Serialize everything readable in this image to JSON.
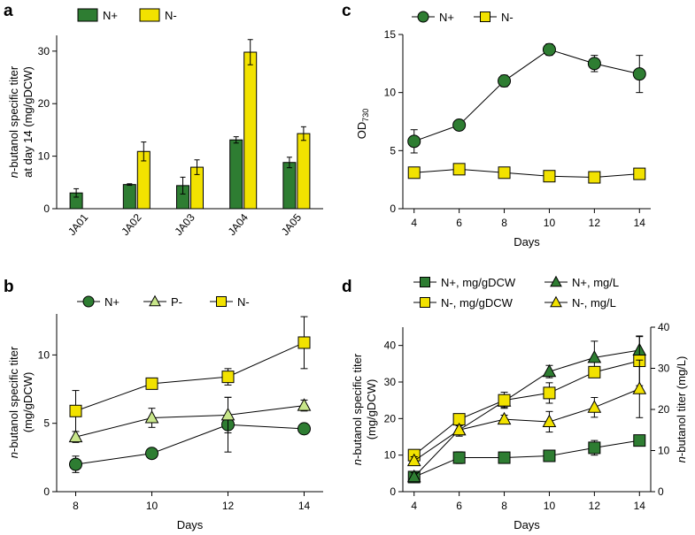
{
  "colors": {
    "n_plus": "#2e7d32",
    "n_minus": "#f2e200",
    "p_minus": "#c8e68a",
    "axis": "#000000"
  },
  "chart_data": [
    {
      "panel": "a",
      "type": "bar",
      "title": "",
      "xlabel": "",
      "ylabel_italic": "n",
      "ylabel_line1": "-butanol specific titer",
      "ylabel_line2": "at day 14 (mg/gDCW)",
      "categories": [
        "JA01",
        "JA02",
        "JA03",
        "JA04",
        "JA05"
      ],
      "ylim": [
        0,
        33
      ],
      "yticks": [
        "0",
        "10",
        "20",
        "30"
      ],
      "legend_position": "top",
      "series": [
        {
          "name": "N+",
          "color_key": "n_plus",
          "values": [
            3.0,
            4.6,
            4.4,
            13.1,
            8.8
          ],
          "errors": [
            0.8,
            0.15,
            1.6,
            0.6,
            1.0
          ]
        },
        {
          "name": "N-",
          "color_key": "n_minus",
          "values": [
            null,
            10.9,
            7.9,
            29.8,
            14.3
          ],
          "errors": [
            null,
            1.8,
            1.4,
            2.4,
            1.3
          ]
        }
      ]
    },
    {
      "panel": "b",
      "type": "line",
      "xlabel": "Days",
      "ylabel_italic": "n",
      "ylabel_line1": "-butanol specific titer",
      "ylabel_line2": "(mg/gDCW)",
      "x": [
        8,
        10,
        12,
        14
      ],
      "xlim": [
        7.5,
        14.5
      ],
      "xticks": [
        "8",
        "10",
        "12",
        "14"
      ],
      "ylim": [
        0,
        13
      ],
      "yticks": [
        "0",
        "5",
        "10"
      ],
      "legend_position": "top",
      "series": [
        {
          "name": "N+",
          "marker": "circle",
          "color_key": "n_plus",
          "values": [
            2.0,
            2.8,
            4.9,
            4.6
          ],
          "errors": [
            0.6,
            0.2,
            2.0,
            0.2
          ]
        },
        {
          "name": "P-",
          "marker": "triangle",
          "color_key": "p_minus",
          "values": [
            4.0,
            5.4,
            5.6,
            6.3
          ],
          "errors": [
            0.4,
            0.7,
            1.3,
            0.4
          ]
        },
        {
          "name": "N-",
          "marker": "square",
          "color_key": "n_minus",
          "values": [
            5.9,
            7.9,
            8.4,
            10.9
          ],
          "errors": [
            1.5,
            0.3,
            0.6,
            1.9
          ]
        }
      ]
    },
    {
      "panel": "c",
      "type": "line",
      "xlabel": "Days",
      "ylabel": "OD",
      "ylabel_sub": "730",
      "x": [
        4,
        6,
        8,
        10,
        12,
        14
      ],
      "xlim": [
        3.5,
        14.5
      ],
      "xticks": [
        "4",
        "6",
        "8",
        "10",
        "12",
        "14"
      ],
      "ylim": [
        0,
        15
      ],
      "yticks": [
        "0",
        "5",
        "10",
        "15"
      ],
      "legend_position": "top",
      "series": [
        {
          "name": "N+",
          "marker": "circle",
          "color_key": "n_plus",
          "values": [
            5.8,
            7.2,
            11.0,
            13.7,
            12.5,
            11.6
          ],
          "errors": [
            1.0,
            0.2,
            0.5,
            0.5,
            0.7,
            1.6
          ]
        },
        {
          "name": "N-",
          "marker": "square",
          "color_key": "n_minus",
          "values": [
            3.1,
            3.4,
            3.1,
            2.8,
            2.7,
            3.0
          ],
          "errors": [
            0.1,
            0.1,
            0.1,
            0.1,
            0.1,
            0.1
          ]
        }
      ]
    },
    {
      "panel": "d",
      "type": "line",
      "xlabel": "Days",
      "ylabel_italic": "n",
      "ylabel_line1": "-butanol specific titer",
      "ylabel_line2": "(mg/gDCW)",
      "ylabel_right_italic": "n",
      "ylabel_right": "-butanol titer (mg/L)",
      "x": [
        4,
        6,
        8,
        10,
        12,
        14
      ],
      "xlim": [
        3.5,
        14.5
      ],
      "xticks": [
        "4",
        "6",
        "8",
        "10",
        "12",
        "14"
      ],
      "ylim": [
        0,
        45
      ],
      "yticks": [
        "0",
        "10",
        "20",
        "30",
        "40"
      ],
      "ylim_right": [
        0,
        40
      ],
      "yticks_right": [
        "0",
        "10",
        "20",
        "30",
        "40"
      ],
      "legend_position": "top",
      "series": [
        {
          "name": "N+, mg/gDCW",
          "marker": "square",
          "color_key": "n_plus",
          "axis": "left",
          "values": [
            4.0,
            9.3,
            9.3,
            9.8,
            12.0,
            14.0
          ],
          "errors": [
            0.6,
            1.6,
            0.5,
            0.5,
            2.0,
            0.5
          ]
        },
        {
          "name": "N+, mg/L",
          "marker": "triangle",
          "color_key": "n_plus",
          "axis": "right",
          "values": [
            3.6,
            15.0,
            22.0,
            29.2,
            32.6,
            34.4
          ],
          "errors": [
            1.0,
            1.5,
            1.5,
            1.5,
            4.0,
            3.3
          ]
        },
        {
          "name": "N-, mg/gDCW",
          "marker": "square",
          "color_key": "n_minus",
          "axis": "left",
          "values": [
            10.0,
            19.8,
            25.0,
            27.0,
            32.7,
            35.8
          ],
          "errors": [
            0.5,
            0.7,
            2.2,
            2.8,
            1.2,
            6.8
          ]
        },
        {
          "name": "N-, mg/L",
          "marker": "triangle",
          "color_key": "n_minus",
          "axis": "right",
          "values": [
            7.5,
            15.0,
            17.6,
            17.0,
            20.5,
            25.0
          ],
          "errors": [
            1.0,
            1.0,
            1.0,
            2.5,
            2.4,
            7.0
          ]
        }
      ]
    }
  ]
}
